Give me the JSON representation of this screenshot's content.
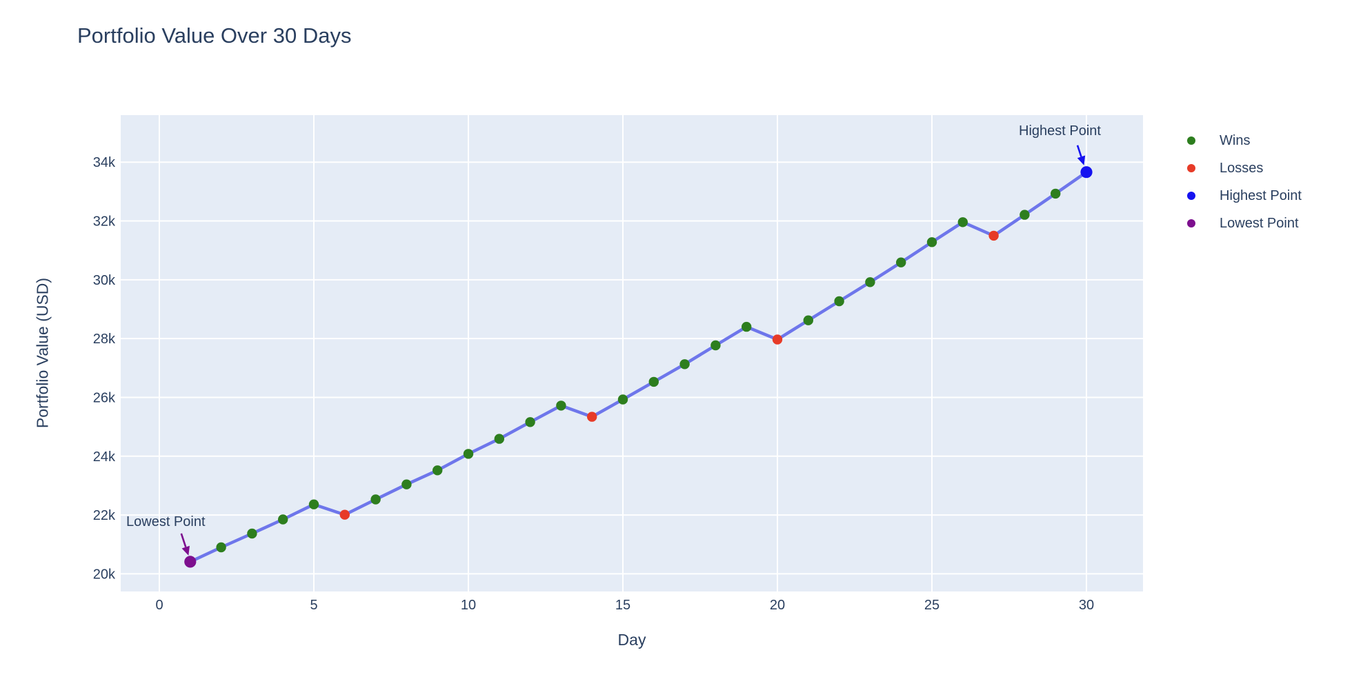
{
  "title": {
    "text": "Portfolio Value Over 30 Days"
  },
  "axes": {
    "x_title": "Day",
    "y_title": "Portfolio Value (USD)"
  },
  "legend": {
    "position": "right",
    "items": [
      {
        "id": "wins",
        "label": "Wins",
        "color": "#2d7e1e"
      },
      {
        "id": "losses",
        "label": "Losses",
        "color": "#e73b28"
      },
      {
        "id": "highest",
        "label": "Highest Point",
        "color": "#1512f0"
      },
      {
        "id": "lowest",
        "label": "Lowest Point",
        "color": "#7d0f8e"
      }
    ]
  },
  "annotations": {
    "highest": {
      "label": "Highest Point",
      "arrow_color": "#1512f0"
    },
    "lowest": {
      "label": "Lowest Point",
      "arrow_color": "#7d0f8e"
    }
  },
  "colors": {
    "text": "#2a3f5f",
    "plot_bg": "#e5ecf6",
    "grid": "#ffffff",
    "line": "#6e76eb",
    "wins": "#2d7e1e",
    "losses": "#e73b28",
    "highest": "#1512f0",
    "lowest": "#7d0f8e"
  },
  "chart_data": {
    "type": "line",
    "title": "Portfolio Value Over 30 Days",
    "xlabel": "Day",
    "ylabel": "Portfolio Value (USD)",
    "x": [
      1,
      2,
      3,
      4,
      5,
      6,
      7,
      8,
      9,
      10,
      11,
      12,
      13,
      14,
      15,
      16,
      17,
      18,
      19,
      20,
      21,
      22,
      23,
      24,
      25,
      26,
      27,
      28,
      29,
      30
    ],
    "y": [
      20410,
      20900,
      21370,
      21850,
      22360,
      22010,
      22530,
      23040,
      23520,
      24080,
      24590,
      25160,
      25720,
      25340,
      25930,
      26530,
      27130,
      27770,
      28400,
      27970,
      28620,
      29270,
      29920,
      30590,
      31280,
      31960,
      31500,
      32210,
      32930,
      33660
    ],
    "point_types": [
      "lowest",
      "win",
      "win",
      "win",
      "win",
      "loss",
      "win",
      "win",
      "win",
      "win",
      "win",
      "win",
      "win",
      "loss",
      "win",
      "win",
      "win",
      "win",
      "win",
      "loss",
      "win",
      "win",
      "win",
      "win",
      "win",
      "win",
      "loss",
      "win",
      "win",
      "highest"
    ],
    "loss_days": [
      6,
      14,
      20,
      27
    ],
    "highest_day": 30,
    "lowest_day": 1,
    "xticks": [
      0,
      5,
      10,
      15,
      20,
      25,
      30
    ],
    "yticks": [
      {
        "value": 20000,
        "label": "20k"
      },
      {
        "value": 22000,
        "label": "22k"
      },
      {
        "value": 24000,
        "label": "24k"
      },
      {
        "value": 26000,
        "label": "26k"
      },
      {
        "value": 28000,
        "label": "28k"
      },
      {
        "value": 30000,
        "label": "30k"
      },
      {
        "value": 32000,
        "label": "32k"
      },
      {
        "value": 34000,
        "label": "34k"
      }
    ],
    "xlim": [
      -1.25,
      31.83
    ],
    "ylim": [
      19400,
      35600
    ],
    "grid": true,
    "legend_position": "right",
    "series_legend": [
      "Wins",
      "Losses",
      "Highest Point",
      "Lowest Point"
    ]
  }
}
